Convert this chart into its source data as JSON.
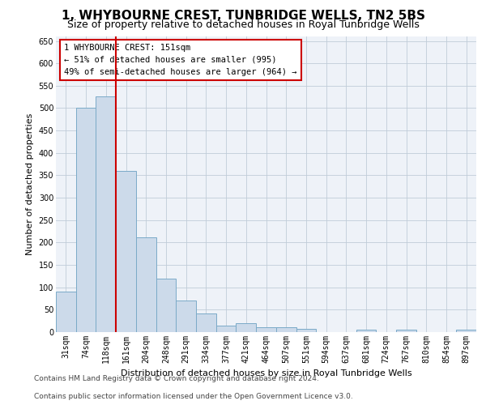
{
  "title": "1, WHYBOURNE CREST, TUNBRIDGE WELLS, TN2 5BS",
  "subtitle": "Size of property relative to detached houses in Royal Tunbridge Wells",
  "xlabel": "Distribution of detached houses by size in Royal Tunbridge Wells",
  "ylabel": "Number of detached properties",
  "footer1": "Contains HM Land Registry data © Crown copyright and database right 2024.",
  "footer2": "Contains public sector information licensed under the Open Government Licence v3.0.",
  "annotation_title": "1 WHYBOURNE CREST: 151sqm",
  "annotation_line1": "← 51% of detached houses are smaller (995)",
  "annotation_line2": "49% of semi-detached houses are larger (964) →",
  "bar_color": "#ccdaea",
  "bar_edge_color": "#7aaac8",
  "vline_color": "#cc0000",
  "vline_x": 2.5,
  "categories": [
    "31sqm",
    "74sqm",
    "118sqm",
    "161sqm",
    "204sqm",
    "248sqm",
    "291sqm",
    "334sqm",
    "377sqm",
    "421sqm",
    "464sqm",
    "507sqm",
    "551sqm",
    "594sqm",
    "637sqm",
    "681sqm",
    "724sqm",
    "767sqm",
    "810sqm",
    "854sqm",
    "897sqm"
  ],
  "values": [
    90,
    500,
    527,
    360,
    212,
    120,
    70,
    42,
    15,
    19,
    10,
    11,
    7,
    0,
    0,
    5,
    0,
    5,
    0,
    0,
    5
  ],
  "ylim": [
    0,
    660
  ],
  "yticks": [
    0,
    50,
    100,
    150,
    200,
    250,
    300,
    350,
    400,
    450,
    500,
    550,
    600,
    650
  ],
  "bg_color": "#eef2f8",
  "grid_color": "#c0ccd8",
  "title_fontsize": 11,
  "subtitle_fontsize": 9,
  "ylabel_fontsize": 8,
  "xlabel_fontsize": 8,
  "tick_fontsize": 7,
  "annotation_fontsize": 7.5,
  "footer_fontsize": 6.5
}
